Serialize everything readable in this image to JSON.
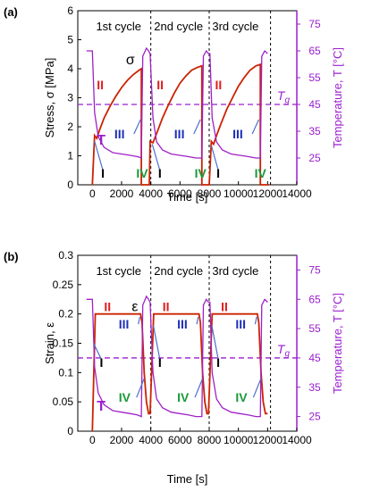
{
  "chart_data": [
    {
      "panel_label": "(a)",
      "type": "line",
      "xlabel": "Time  [s]",
      "ylabel": "Stress, σ  [MPa]",
      "y2label": "Temperature, T  [°C]",
      "xlim": [
        -1000,
        14000
      ],
      "ylim": [
        0,
        6
      ],
      "y2lim": [
        15,
        80
      ],
      "xticks": [
        0,
        2000,
        4000,
        6000,
        8000,
        10000,
        12000,
        14000
      ],
      "yticks": [
        0,
        1,
        2,
        3,
        4,
        5,
        6
      ],
      "y2ticks": [
        25,
        35,
        45,
        55,
        65,
        75
      ],
      "cycle_boundaries": [
        4000,
        8000,
        12200
      ],
      "cycle_labels": [
        {
          "text": "1st cycle",
          "x": 1800
        },
        {
          "text": "2nd cycle",
          "x": 5900
        },
        {
          "text": "3rd cycle",
          "x": 9800
        }
      ],
      "tg": {
        "label": "T",
        "subscript": "g",
        "y2": 45
      },
      "series": [
        {
          "name": "σ",
          "color": "#cc2200",
          "axis": "left",
          "x": [
            0,
            150,
            300,
            500,
            800,
            1200,
            1600,
            2000,
            2400,
            2800,
            3200,
            3350,
            3350,
            3450,
            3700,
            3900,
            3950,
            4150,
            4500,
            4800,
            5200,
            5600,
            6000,
            6400,
            6800,
            7200,
            7500,
            7500,
            7600,
            7900,
            8000,
            8150,
            8300,
            8500,
            8800,
            9200,
            9600,
            10000,
            10400,
            10800,
            11200,
            11500,
            11500,
            11600,
            11900,
            12100
          ],
          "y": [
            0,
            1.7,
            1.6,
            1.9,
            2.3,
            2.7,
            3.05,
            3.35,
            3.6,
            3.8,
            3.95,
            4.0,
            0,
            0,
            0,
            0,
            1.5,
            1.45,
            1.9,
            2.3,
            2.75,
            3.15,
            3.5,
            3.75,
            3.95,
            4.05,
            4.1,
            0,
            0,
            0,
            0,
            1.5,
            1.4,
            1.7,
            2.1,
            2.6,
            3.0,
            3.4,
            3.7,
            3.95,
            4.1,
            4.15,
            0,
            0,
            0,
            0
          ]
        },
        {
          "name": "T",
          "color": "#a020c8",
          "axis": "right",
          "x": [
            -400,
            0,
            150,
            400,
            800,
            1400,
            2000,
            2600,
            3100,
            3350,
            3450,
            3700,
            3850,
            3950,
            4150,
            4400,
            4800,
            5400,
            6000,
            6600,
            7100,
            7500,
            7600,
            7800,
            7950,
            8050,
            8200,
            8500,
            8900,
            9500,
            10100,
            10700,
            11200,
            11500,
            11600,
            11800,
            12000
          ],
          "y": [
            65,
            65,
            42,
            33,
            29,
            27,
            26.5,
            26,
            25.5,
            25,
            63,
            66,
            65,
            64,
            40,
            31,
            28,
            26.5,
            26,
            25.5,
            25,
            25,
            63,
            65,
            64,
            64,
            40,
            31,
            28,
            26.5,
            26,
            25.5,
            25,
            25,
            63,
            65,
            64
          ]
        }
      ],
      "annotations": [
        {
          "text": "σ",
          "color": "#000000"
        },
        {
          "text": "T",
          "color": "#9b1fcf"
        },
        {
          "text": "I",
          "color": "#000000"
        },
        {
          "text": "II",
          "color": "#e01e1e"
        },
        {
          "text": "III",
          "color": "#1e2fb8"
        },
        {
          "text": "IV",
          "color": "#1a9a3a"
        }
      ]
    },
    {
      "panel_label": "(b)",
      "type": "line",
      "xlabel": "Time  [s]",
      "ylabel": "Strain, ε",
      "y2label": "Temperature, T  [°C]",
      "xlim": [
        -1000,
        14000
      ],
      "ylim": [
        0,
        0.3
      ],
      "y2lim": [
        20,
        80
      ],
      "xticks": [
        0,
        2000,
        4000,
        6000,
        8000,
        10000,
        12000,
        14000
      ],
      "yticks": [
        0,
        0.05,
        0.1,
        0.15,
        0.2,
        0.25,
        0.3
      ],
      "y2ticks": [
        25,
        35,
        45,
        55,
        65,
        75
      ],
      "cycle_boundaries": [
        4000,
        8000,
        12200
      ],
      "cycle_labels": [
        {
          "text": "1st cycle",
          "x": 1800
        },
        {
          "text": "2nd cycle",
          "x": 5900
        },
        {
          "text": "3rd cycle",
          "x": 9800
        }
      ],
      "tg": {
        "label": "T",
        "subscript": "g",
        "y2": 45
      },
      "series": [
        {
          "name": "ε",
          "color": "#cc2200",
          "axis": "left",
          "x": [
            0,
            200,
            3300,
            3400,
            3550,
            3700,
            3850,
            3950,
            4200,
            7300,
            7400,
            7550,
            7700,
            7850,
            7950,
            8200,
            11300,
            11400,
            11550,
            11700,
            11850,
            12000
          ],
          "y": [
            0,
            0.2,
            0.2,
            0.185,
            0.1,
            0.05,
            0.03,
            0.03,
            0.2,
            0.2,
            0.185,
            0.1,
            0.05,
            0.03,
            0.03,
            0.2,
            0.2,
            0.185,
            0.1,
            0.05,
            0.03,
            0.03
          ]
        },
        {
          "name": "T",
          "color": "#a020c8",
          "axis": "right",
          "x": [
            -400,
            0,
            150,
            400,
            800,
            1400,
            2000,
            2600,
            3100,
            3350,
            3450,
            3700,
            3850,
            3950,
            4150,
            4400,
            4800,
            5400,
            6000,
            6600,
            7100,
            7500,
            7600,
            7800,
            7950,
            8050,
            8200,
            8500,
            8900,
            9500,
            10100,
            10700,
            11200,
            11500,
            11600,
            11800,
            12000
          ],
          "y": [
            65,
            65,
            42,
            33,
            29,
            27,
            26.5,
            26,
            25.5,
            25,
            63,
            66,
            65,
            64,
            40,
            31,
            28,
            26.5,
            26,
            25.5,
            25,
            25,
            63,
            65,
            64,
            64,
            40,
            31,
            28,
            26.5,
            26,
            25.5,
            25,
            25,
            63,
            65,
            64
          ]
        }
      ],
      "annotations": [
        {
          "text": "ε",
          "color": "#000000"
        },
        {
          "text": "T",
          "color": "#9b1fcf"
        },
        {
          "text": "I",
          "color": "#000000"
        },
        {
          "text": "II",
          "color": "#e01e1e"
        },
        {
          "text": "III",
          "color": "#1e2fb8"
        },
        {
          "text": "IV",
          "color": "#1a9a3a"
        }
      ]
    }
  ]
}
